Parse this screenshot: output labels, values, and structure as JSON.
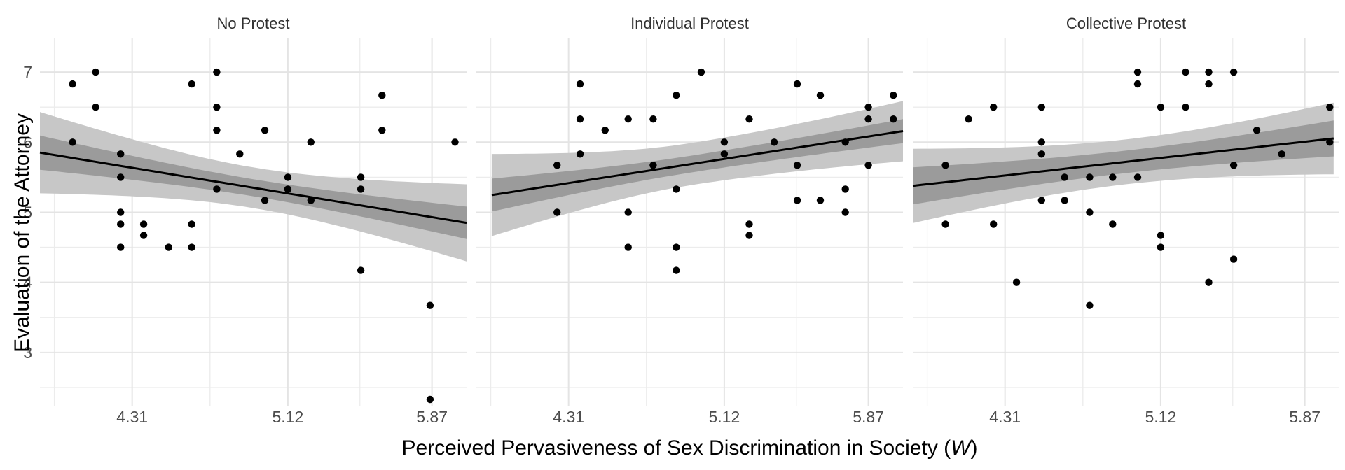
{
  "figure": {
    "x_title": {
      "prefix": "Perceived Pervasiveness of Sex Discrimination in Society (",
      "italic": "W",
      "suffix": ")"
    },
    "y_title": "Evaluation of the Attorney"
  },
  "colors": {
    "background": "#ffffff",
    "point": "#000000",
    "regression_line": "#000000",
    "band_outer": "#c7c7c7",
    "band_inner": "#9b9b9b",
    "grid_major": "#e4e4e4",
    "grid_minor": "#ececec",
    "axis_text": "#4d4d4d",
    "facet_label": "#303030"
  },
  "chart_data": {
    "type": "scatter",
    "title": "",
    "xlabel": "Perceived Pervasiveness of Sex Discrimination in Society (W)",
    "ylabel": "Evaluation of the Attorney",
    "legend": "none",
    "grid": "on",
    "x_ticks": [
      4.31,
      5.12,
      5.87
    ],
    "x_minor_ticks": [
      3.905,
      4.715,
      5.495
    ],
    "y_ticks": [
      3,
      4,
      5,
      6,
      7
    ],
    "y_minor_ticks": [
      2.5,
      3.5,
      4.5,
      5.5,
      6.5
    ],
    "xlim": [
      3.83,
      6.05
    ],
    "ylim": [
      2.24,
      7.48
    ],
    "facets": [
      {
        "label": "No Protest",
        "points": [
          [
            4.0,
            6.83
          ],
          [
            4.12,
            7.0
          ],
          [
            4.12,
            6.5
          ],
          [
            4.0,
            6.0
          ],
          [
            4.25,
            5.83
          ],
          [
            4.25,
            5.5
          ],
          [
            4.25,
            5.0
          ],
          [
            4.25,
            4.83
          ],
          [
            4.37,
            4.83
          ],
          [
            4.37,
            4.67
          ],
          [
            4.25,
            4.5
          ],
          [
            4.5,
            4.5
          ],
          [
            4.62,
            4.5
          ],
          [
            4.62,
            4.83
          ],
          [
            4.62,
            6.83
          ],
          [
            4.75,
            7.0
          ],
          [
            4.75,
            6.5
          ],
          [
            4.75,
            6.17
          ],
          [
            5.0,
            6.17
          ],
          [
            4.87,
            5.83
          ],
          [
            4.75,
            5.33
          ],
          [
            5.0,
            5.17
          ],
          [
            5.12,
            5.5
          ],
          [
            5.12,
            5.33
          ],
          [
            5.24,
            6.0
          ],
          [
            5.24,
            5.17
          ],
          [
            5.5,
            5.5
          ],
          [
            5.5,
            5.33
          ],
          [
            5.5,
            4.17
          ],
          [
            5.61,
            6.67
          ],
          [
            5.61,
            6.17
          ],
          [
            5.86,
            3.67
          ],
          [
            5.86,
            2.33
          ],
          [
            5.99,
            6.0
          ]
        ],
        "fit": {
          "slope": -0.451,
          "intercept": 7.578,
          "band_x_range": [
            3.83,
            6.05
          ],
          "ci95_halfwidth": {
            "center": 0.29,
            "at_left_edge": 0.58,
            "at_right_edge": 0.55
          },
          "inner_band_ratio": 0.42
        }
      },
      {
        "label": "Individual Protest",
        "points": [
          [
            4.37,
            6.83
          ],
          [
            4.37,
            6.33
          ],
          [
            4.62,
            6.33
          ],
          [
            4.5,
            6.17
          ],
          [
            4.37,
            5.83
          ],
          [
            4.25,
            5.67
          ],
          [
            4.25,
            5.0
          ],
          [
            4.62,
            5.0
          ],
          [
            4.62,
            4.5
          ],
          [
            5.0,
            7.0
          ],
          [
            4.87,
            6.67
          ],
          [
            4.75,
            6.33
          ],
          [
            5.25,
            6.33
          ],
          [
            5.12,
            6.0
          ],
          [
            5.38,
            6.0
          ],
          [
            5.12,
            5.83
          ],
          [
            4.75,
            5.67
          ],
          [
            4.87,
            5.33
          ],
          [
            5.25,
            4.83
          ],
          [
            5.25,
            4.67
          ],
          [
            4.87,
            4.5
          ],
          [
            4.87,
            4.17
          ],
          [
            5.5,
            6.83
          ],
          [
            5.62,
            6.67
          ],
          [
            6.0,
            6.67
          ],
          [
            5.87,
            6.5
          ],
          [
            5.87,
            6.33
          ],
          [
            6.0,
            6.33
          ],
          [
            5.75,
            6.0
          ],
          [
            5.5,
            5.67
          ],
          [
            5.87,
            5.67
          ],
          [
            5.75,
            5.33
          ],
          [
            5.5,
            5.17
          ],
          [
            5.62,
            5.17
          ],
          [
            5.75,
            5.0
          ]
        ],
        "fit": {
          "slope": 0.426,
          "intercept": 3.58,
          "band_x_range": [
            3.91,
            6.05
          ],
          "ci95_halfwidth": {
            "center": 0.3,
            "at_left_edge": 0.62,
            "at_right_edge": 0.43
          },
          "inner_band_ratio": 0.4
        }
      },
      {
        "label": "Collective Protest",
        "points": [
          [
            4.25,
            6.5
          ],
          [
            4.12,
            6.33
          ],
          [
            4.5,
            6.5
          ],
          [
            4.5,
            6.0
          ],
          [
            4.5,
            5.83
          ],
          [
            4.0,
            5.67
          ],
          [
            4.62,
            5.5
          ],
          [
            4.5,
            5.17
          ],
          [
            4.62,
            5.17
          ],
          [
            4.0,
            4.83
          ],
          [
            4.25,
            4.83
          ],
          [
            4.37,
            4.0
          ],
          [
            5.0,
            7.0
          ],
          [
            5.0,
            6.83
          ],
          [
            5.25,
            7.0
          ],
          [
            5.37,
            7.0
          ],
          [
            5.37,
            6.83
          ],
          [
            5.12,
            6.5
          ],
          [
            5.25,
            6.5
          ],
          [
            4.75,
            5.5
          ],
          [
            4.87,
            5.5
          ],
          [
            5.0,
            5.5
          ],
          [
            4.75,
            5.0
          ],
          [
            4.87,
            4.83
          ],
          [
            5.12,
            4.67
          ],
          [
            5.12,
            4.5
          ],
          [
            5.37,
            4.0
          ],
          [
            4.75,
            3.67
          ],
          [
            5.5,
            7.0
          ],
          [
            6.0,
            6.5
          ],
          [
            5.62,
            6.17
          ],
          [
            6.0,
            6.0
          ],
          [
            5.75,
            5.83
          ],
          [
            5.5,
            5.67
          ],
          [
            5.5,
            4.33
          ]
        ],
        "fit": {
          "slope": 0.309,
          "intercept": 4.193,
          "band_x_range": [
            3.83,
            6.02
          ],
          "ci95_halfwidth": {
            "center": 0.32,
            "at_left_edge": 0.53,
            "at_right_edge": 0.52
          },
          "inner_band_ratio": 0.5
        }
      }
    ]
  }
}
